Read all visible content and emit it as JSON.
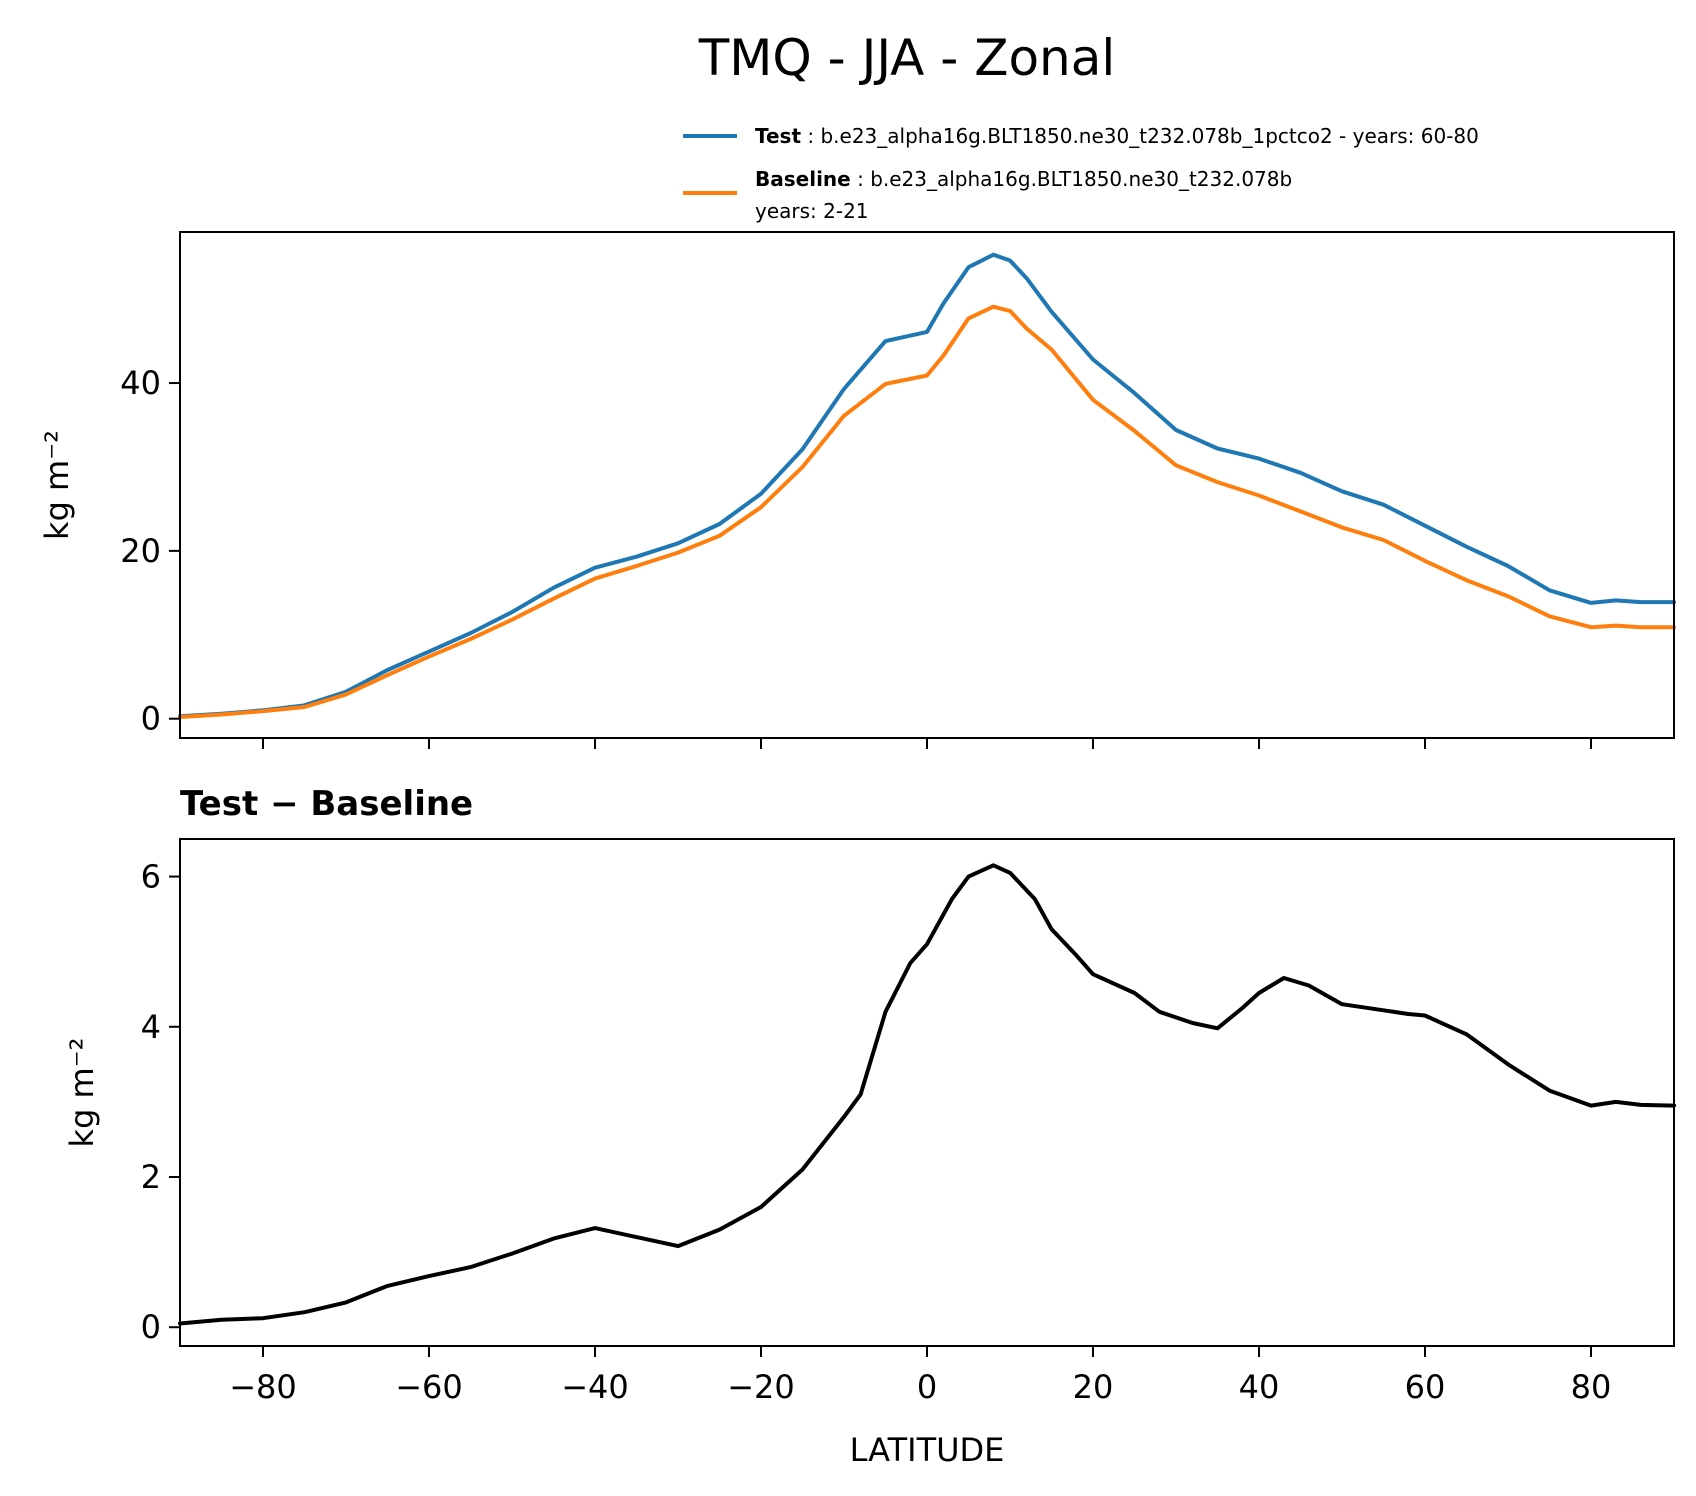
{
  "title": "TMQ - JJA - Zonal",
  "legend": [
    {
      "label": "Test",
      "sep": " : ",
      "desc": "b.e23_alpha16g.BLT1850.ne30_t232.078b_1pctco2 - years: 60-80",
      "desc2": "",
      "color": "#1f77b4"
    },
    {
      "label": "Baseline",
      "sep": " : ",
      "desc": "b.e23_alpha16g.BLT1850.ne30_t232.078b",
      "desc2": "years: 2-21",
      "color": "#ff7f0e"
    }
  ],
  "chart_data": [
    {
      "type": "line",
      "name": "top",
      "ylabel": "kg m⁻²",
      "xlim": [
        -90,
        90
      ],
      "ylim": [
        -2.3,
        58
      ],
      "yticks": [
        0,
        20,
        40
      ],
      "xticks": [
        -80,
        -60,
        -40,
        -20,
        0,
        20,
        40,
        60,
        80
      ],
      "x": [
        -90,
        -85,
        -80,
        -75,
        -70,
        -65,
        -60,
        -55,
        -50,
        -45,
        -40,
        -35,
        -30,
        -25,
        -20,
        -15,
        -10,
        -5,
        0,
        2,
        5,
        8,
        10,
        12,
        15,
        20,
        25,
        30,
        35,
        40,
        45,
        50,
        55,
        60,
        65,
        70,
        75,
        80,
        83,
        86,
        90
      ],
      "series": [
        {
          "name": "Test",
          "color": "#1f77b4",
          "values": [
            0.3,
            0.6,
            1.0,
            1.6,
            3.2,
            5.8,
            8.0,
            10.2,
            12.7,
            15.6,
            18.0,
            19.3,
            20.9,
            23.2,
            26.8,
            32.1,
            39.3,
            45.0,
            46.1,
            49.5,
            53.8,
            55.3,
            54.6,
            52.5,
            48.5,
            42.8,
            38.8,
            34.4,
            32.2,
            31.0,
            29.3,
            27.1,
            25.5,
            23.0,
            20.5,
            18.2,
            15.3,
            13.8,
            14.1,
            13.9,
            13.9
          ]
        },
        {
          "name": "Baseline",
          "color": "#ff7f0e",
          "values": [
            0.2,
            0.5,
            0.9,
            1.4,
            2.9,
            5.2,
            7.4,
            9.5,
            11.8,
            14.3,
            16.7,
            18.2,
            19.8,
            21.8,
            25.2,
            30.0,
            36.1,
            39.9,
            40.9,
            43.3,
            47.7,
            49.1,
            48.6,
            46.5,
            44.0,
            38.0,
            34.3,
            30.2,
            28.2,
            26.6,
            24.7,
            22.8,
            21.3,
            18.8,
            16.5,
            14.6,
            12.2,
            10.9,
            11.1,
            10.9,
            10.9
          ]
        }
      ]
    },
    {
      "type": "line",
      "name": "difference",
      "title": "Test − Baseline",
      "xlabel": "LATITUDE",
      "ylabel": "kg m⁻²",
      "xlim": [
        -90,
        90
      ],
      "ylim": [
        -0.25,
        6.5
      ],
      "yticks": [
        0,
        2,
        4,
        6
      ],
      "xticks": [
        -80,
        -60,
        -40,
        -20,
        0,
        20,
        40,
        60,
        80
      ],
      "x": [
        -90,
        -85,
        -80,
        -75,
        -70,
        -65,
        -60,
        -55,
        -50,
        -45,
        -40,
        -35,
        -30,
        -25,
        -20,
        -15,
        -10,
        -8,
        -5,
        -2,
        0,
        3,
        5,
        8,
        10,
        13,
        15,
        18,
        20,
        25,
        28,
        32,
        35,
        38,
        40,
        43,
        46,
        50,
        55,
        58,
        60,
        65,
        70,
        75,
        80,
        83,
        86,
        90
      ],
      "series": [
        {
          "name": "Test − Baseline",
          "color": "#000000",
          "values": [
            0.05,
            0.1,
            0.12,
            0.2,
            0.33,
            0.55,
            0.68,
            0.8,
            0.98,
            1.18,
            1.32,
            1.2,
            1.08,
            1.3,
            1.6,
            2.1,
            2.8,
            3.1,
            4.2,
            4.85,
            5.1,
            5.7,
            6.0,
            6.15,
            6.05,
            5.7,
            5.3,
            4.95,
            4.7,
            4.45,
            4.2,
            4.05,
            3.98,
            4.25,
            4.45,
            4.65,
            4.55,
            4.3,
            4.22,
            4.17,
            4.15,
            3.9,
            3.5,
            3.15,
            2.95,
            3.0,
            2.96,
            2.95
          ]
        }
      ]
    }
  ]
}
